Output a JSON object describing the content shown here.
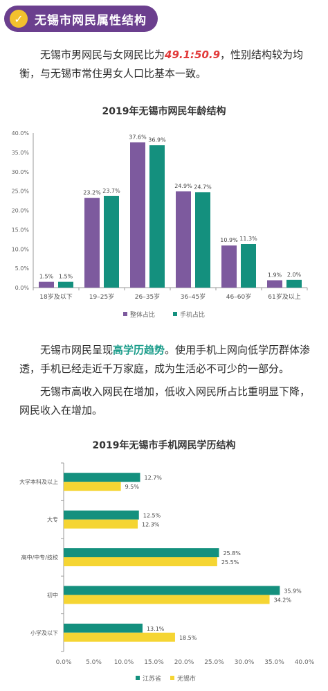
{
  "header": {
    "title": "无锡市网民属性结构",
    "check_glyph": "✓"
  },
  "intro": {
    "before": "无锡市男网民与女网民比为",
    "ratio": "49.1:50.9",
    "after": "，性别结构较为均衡，与无锡市常住男女人口比基本一致。"
  },
  "para2": {
    "before": "无锡市网民呈现",
    "highlight": "高学历趋势",
    "after": "。使用手机上网向低学历群体渗透，手机已经走近千万家庭，成为生活必不可少的一部分。"
  },
  "para3": {
    "text": "无锡市高收入网民在增加，低收入网民所占比重明显下降，网民收入在增加。"
  },
  "colors": {
    "purple": "#7d5a9e",
    "teal": "#14907e",
    "yellow": "#f5d533",
    "header_bg": "#6b3f8e",
    "accent_yellow": "#f2c12e"
  },
  "chart_data": [
    {
      "type": "bar",
      "title": "2019年无锡市网民年龄结构",
      "categories": [
        "18岁及以下",
        "19–25岁",
        "26–35岁",
        "36–45岁",
        "46–60岁",
        "61岁及以上"
      ],
      "series": [
        {
          "name": "整体占比",
          "values": [
            1.5,
            23.2,
            37.6,
            24.9,
            10.9,
            1.9
          ],
          "labels": [
            "1.5%",
            "23.2%",
            "37.6%",
            "24.9%",
            "10.9%",
            "1.9%"
          ]
        },
        {
          "name": "手机占比",
          "values": [
            1.5,
            23.7,
            36.9,
            24.7,
            11.3,
            2.0
          ],
          "labels": [
            "1.5%",
            "23.7%",
            "36.9%",
            "24.7%",
            "11.3%",
            "2.0%"
          ]
        }
      ],
      "yticks": [
        "0.0%",
        "5.0%",
        "10.0%",
        "15.0%",
        "20.0%",
        "25.0%",
        "30.0%",
        "35.0%",
        "40.0%"
      ],
      "ylim": [
        0,
        40
      ],
      "legend_position": "bottom"
    },
    {
      "type": "bar",
      "orientation": "horizontal",
      "title": "2019年无锡市手机网民学历结构",
      "categories": [
        "大学本科及以上",
        "大专",
        "高中/中专/技校",
        "初中",
        "小学及以下"
      ],
      "series": [
        {
          "name": "江苏省",
          "values": [
            12.7,
            12.5,
            25.8,
            35.9,
            13.1
          ],
          "labels": [
            "12.7%",
            "12.5%",
            "25.8%",
            "35.9%",
            "13.1%"
          ]
        },
        {
          "name": "无锡市",
          "values": [
            9.5,
            12.3,
            25.5,
            34.2,
            18.5
          ],
          "labels": [
            "9.5%",
            "12.3%",
            "25.5%",
            "34.2%",
            "18.5%"
          ]
        }
      ],
      "xticks": [
        "0.0%",
        "5.0%",
        "10.0%",
        "15.0%",
        "20.0%",
        "25.0%",
        "30.0%",
        "35.0%",
        "40.0%"
      ],
      "xlim": [
        0,
        40
      ],
      "legend_position": "bottom"
    }
  ]
}
